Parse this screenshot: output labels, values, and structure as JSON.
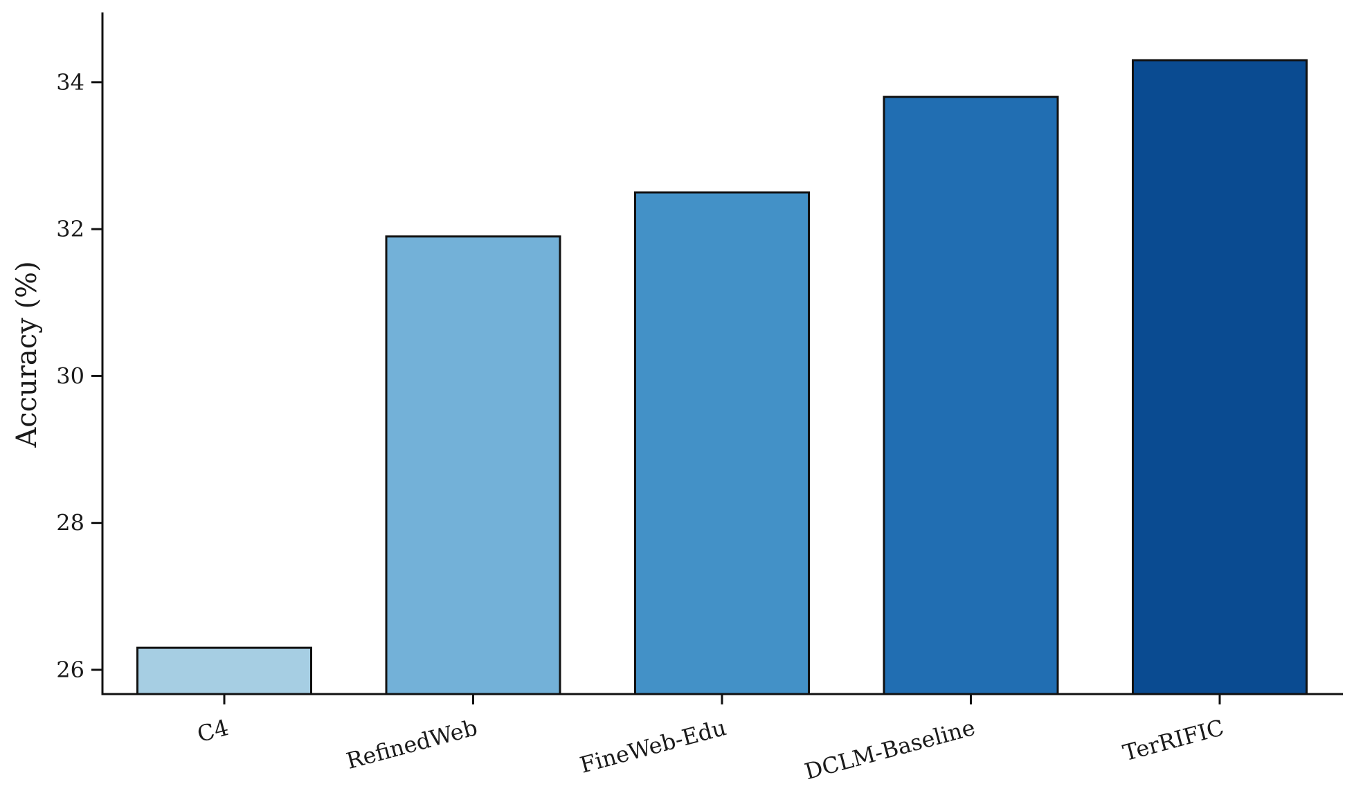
{
  "chart_data": {
    "type": "bar",
    "title": "",
    "xlabel": "",
    "ylabel": "Accuracy (%)",
    "categories": [
      "C4",
      "RefinedWeb",
      "FineWeb-Edu",
      "DCLM-Baseline",
      "TerRIFIC"
    ],
    "values": [
      26.3,
      31.9,
      32.5,
      33.8,
      34.3
    ],
    "bar_colors": [
      "#a6cee3",
      "#73b1d8",
      "#4391c7",
      "#216eb2",
      "#0a4b91"
    ],
    "edge_color": "#111111",
    "ylim": [
      25.67,
      34.95
    ],
    "yticks": [
      26,
      28,
      30,
      32,
      34
    ],
    "ytick_labels": [
      "26",
      "28",
      "30",
      "32",
      "34"
    ],
    "grid": false,
    "legend": "none",
    "x_tick_rotation_deg": -15
  }
}
